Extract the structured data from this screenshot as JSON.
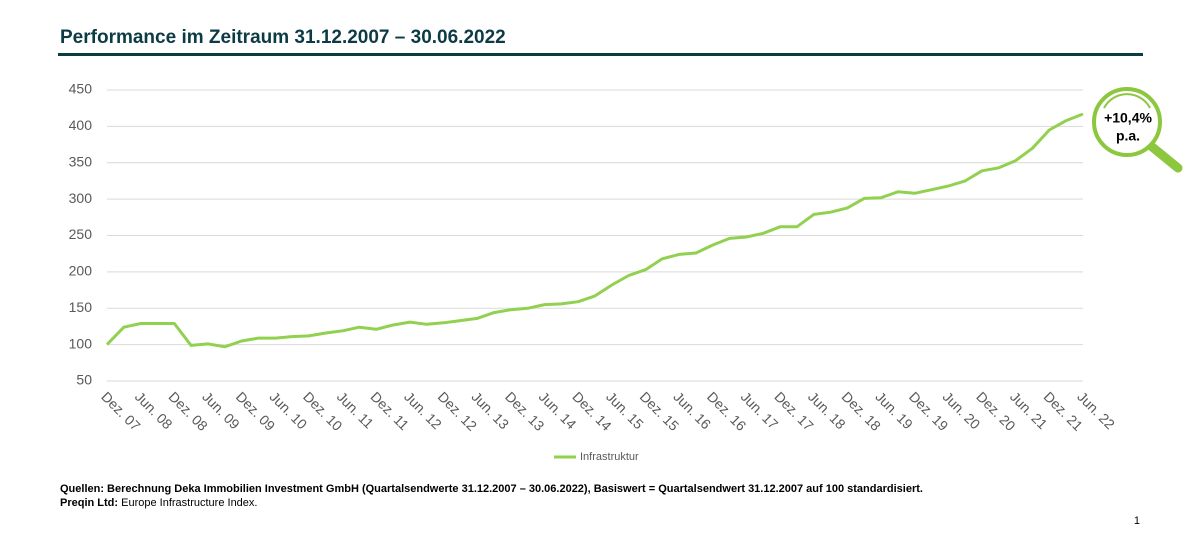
{
  "chart_data": {
    "type": "line",
    "title": "Performance im Zeitraum 31.12.2007 – 30.06.2022",
    "categories": [
      "Dez. 07",
      null,
      "Jun. 08",
      null,
      "Dez. 08",
      null,
      "Jun. 09",
      null,
      "Dez. 09",
      null,
      "Jun. 10",
      null,
      "Dez. 10",
      null,
      "Jun. 11",
      null,
      "Dez. 11",
      null,
      "Jun. 12",
      null,
      "Dez. 12",
      null,
      "Jun. 13",
      null,
      "Dez. 13",
      null,
      "Jun. 14",
      null,
      "Dez. 14",
      null,
      "Jun. 15",
      null,
      "Dez. 15",
      null,
      "Jun. 16",
      null,
      "Dez. 16",
      null,
      "Jun. 17",
      null,
      "Dez. 17",
      null,
      "Jun. 18",
      null,
      "Dez. 18",
      null,
      "Jun. 19",
      null,
      "Dez. 19",
      null,
      "Jun. 20",
      null,
      "Dez. 20",
      null,
      "Jun. 21",
      null,
      "Dez. 21",
      null,
      "Jun. 22"
    ],
    "series": [
      {
        "name": "Infrastruktur",
        "color": "#92d050",
        "values": [
          100,
          124,
          129,
          129,
          129,
          99,
          101,
          97,
          105,
          109,
          109,
          111,
          112,
          116,
          119,
          124,
          121,
          127,
          131,
          128,
          130,
          133,
          136,
          144,
          148,
          150,
          155,
          156,
          159,
          167,
          182,
          195,
          203,
          218,
          224,
          226,
          237,
          246,
          248,
          253,
          262,
          262,
          279,
          282,
          288,
          301,
          302,
          310,
          308,
          313,
          318,
          325,
          339,
          343,
          353,
          370,
          395,
          408,
          417
        ]
      }
    ],
    "ylim": [
      50,
      450
    ],
    "yticks": [
      50,
      100,
      150,
      200,
      250,
      300,
      350,
      400,
      450
    ],
    "grid": true,
    "legend": "bottom",
    "annotations": [
      "+10,4%",
      "p.a."
    ],
    "footnotes": [
      "Quellen:  Berechnung  Deka Immobilien Investment GmbH  (Quartalsendwerte 31.12.2007 – 30.06.2022), Basiswert = Quartalsendwert 31.12.2007 auf 100 standardisiert."
    ],
    "source_label": "Preqin Ltd:",
    "source_text": "Europe Infrastructure Index.",
    "page_number": "1"
  }
}
